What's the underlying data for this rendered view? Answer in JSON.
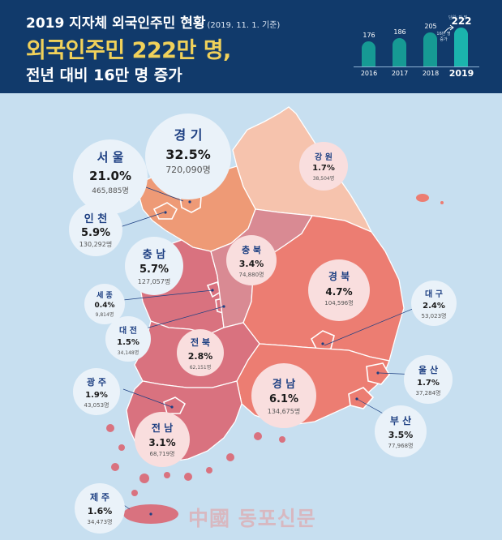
{
  "header": {
    "line1": "2019 지자체 외국인주민 현황",
    "line1_note": "(2019. 11. 1. 기준)",
    "line2": "외국인주민 222만 명,",
    "line3": "전년 대비 16만 명 증가",
    "unit_label": "단위: 만 명",
    "increase_label": "16만 명 증가"
  },
  "bar_chart": {
    "type": "bar",
    "categories": [
      "2016",
      "2017",
      "2018",
      "2019"
    ],
    "values": [
      176,
      186,
      205,
      222
    ],
    "title": "",
    "xlabel": "",
    "ylabel": ""
  },
  "regions": {
    "gyeonggi": {
      "name": "경 기",
      "pct": "32.5%",
      "count": "720,090명"
    },
    "seoul": {
      "name": "서 울",
      "pct": "21.0%",
      "count": "465,885명"
    },
    "gangwon": {
      "name": "강 원",
      "pct": "1.7%",
      "count": "38,504명"
    },
    "incheon": {
      "name": "인 천",
      "pct": "5.9%",
      "count": "130,292명"
    },
    "chungnam": {
      "name": "충 남",
      "pct": "5.7%",
      "count": "127,057명"
    },
    "chungbuk": {
      "name": "충 북",
      "pct": "3.4%",
      "count": "74,880명"
    },
    "gyeongbuk": {
      "name": "경 북",
      "pct": "4.7%",
      "count": "104,596명"
    },
    "sejong": {
      "name": "세 종",
      "pct": "0.4%",
      "count": "9,814명"
    },
    "daegu": {
      "name": "대 구",
      "pct": "2.4%",
      "count": "53,023명"
    },
    "daejeon": {
      "name": "대 전",
      "pct": "1.5%",
      "count": "34,148명"
    },
    "jeonbuk": {
      "name": "전 북",
      "pct": "2.8%",
      "count": "62,151명"
    },
    "ulsan": {
      "name": "울 산",
      "pct": "1.7%",
      "count": "37,284명"
    },
    "gwangju": {
      "name": "광 주",
      "pct": "1.9%",
      "count": "43,053명"
    },
    "gyeongnam": {
      "name": "경 남",
      "pct": "6.1%",
      "count": "134,675명"
    },
    "busan": {
      "name": "부 산",
      "pct": "3.5%",
      "count": "77,968명"
    },
    "jeonnam": {
      "name": "전 남",
      "pct": "3.1%",
      "count": "68,719명"
    },
    "jeju": {
      "name": "제 주",
      "pct": "1.6%",
      "count": "34,473명"
    }
  },
  "colors": {
    "header_bg": "#113a6b",
    "headline_yellow": "#f0d15a",
    "bar_teal": "#1aa6a0",
    "sea": "#c7dff0",
    "gyeonggi": "#ee9a76",
    "gangwon": "#f6c3ad",
    "middle_rose": "#d9727f",
    "east_salmon": "#ec7d72"
  },
  "watermark": "中國 동포신문"
}
